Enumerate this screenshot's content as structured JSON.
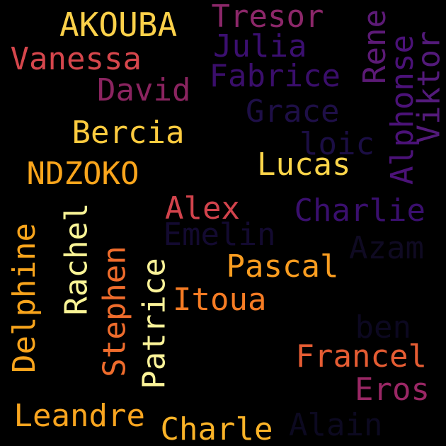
{
  "cloud": {
    "background": "#000000",
    "words": [
      {
        "text": "AKOUBA",
        "color": "#fcd14a",
        "rotation": 0
      },
      {
        "text": "Tresor",
        "color": "#8c2769",
        "rotation": 0
      },
      {
        "text": "Vanessa",
        "color": "#d5464c",
        "rotation": 0
      },
      {
        "text": "Julia",
        "color": "#3b0f70",
        "rotation": 0
      },
      {
        "text": "Rene",
        "color": "#5c1a76",
        "rotation": -90
      },
      {
        "text": "Fabrice",
        "color": "#3a0e6b",
        "rotation": 0
      },
      {
        "text": "David",
        "color": "#8b2460",
        "rotation": 0
      },
      {
        "text": "Alphonse",
        "color": "#4b1278",
        "rotation": -90
      },
      {
        "text": "Viktor",
        "color": "#531a7a",
        "rotation": -90
      },
      {
        "text": "Grace",
        "color": "#1e0f47",
        "rotation": 0
      },
      {
        "text": "Bercia",
        "color": "#fdcb3f",
        "rotation": 0
      },
      {
        "text": "loic",
        "color": "#1b0e44",
        "rotation": 0
      },
      {
        "text": "NDZOKO",
        "color": "#faa51c",
        "rotation": 0
      },
      {
        "text": "Lucas",
        "color": "#fbd54a",
        "rotation": 0
      },
      {
        "text": "Rachel",
        "color": "#f9f496",
        "rotation": -90
      },
      {
        "text": "Alex",
        "color": "#d2434c",
        "rotation": 0
      },
      {
        "text": "Charlie",
        "color": "#3a0f6e",
        "rotation": 0
      },
      {
        "text": "Delphine",
        "color": "#f8a41c",
        "rotation": -90
      },
      {
        "text": "Emelin",
        "color": "#130a30",
        "rotation": 0
      },
      {
        "text": "Azam",
        "color": "#0f0a22",
        "rotation": 0
      },
      {
        "text": "Stephen",
        "color": "#ef6c2c",
        "rotation": -90
      },
      {
        "text": "Pascal",
        "color": "#fa9d20",
        "rotation": 0
      },
      {
        "text": "Patrice",
        "color": "#fbf399",
        "rotation": -90
      },
      {
        "text": "Itoua",
        "color": "#f67c24",
        "rotation": 0
      },
      {
        "text": "ben",
        "color": "#0c0820",
        "rotation": 0
      },
      {
        "text": "Francel",
        "color": "#e55c33",
        "rotation": 0
      },
      {
        "text": "Eros",
        "color": "#9a2765",
        "rotation": 0
      },
      {
        "text": "Leandre",
        "color": "#f9a51f",
        "rotation": 0
      },
      {
        "text": "Charle",
        "color": "#fbb328",
        "rotation": 0
      },
      {
        "text": "Alain",
        "color": "#0c0920",
        "rotation": 0
      }
    ]
  }
}
